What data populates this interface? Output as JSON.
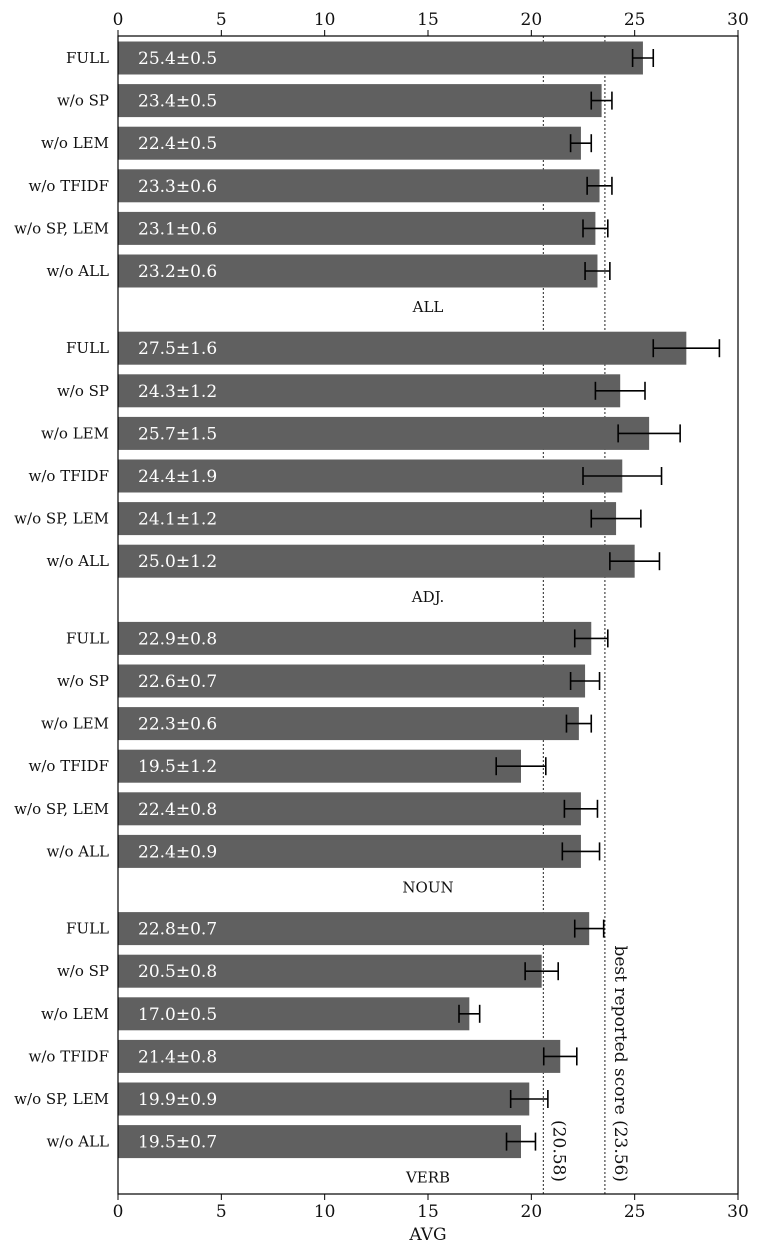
{
  "chart_data": {
    "type": "bar",
    "orientation": "horizontal",
    "title": "",
    "xlabel": "AVG",
    "ylabel": "",
    "xlim": [
      0,
      30
    ],
    "xticks": [
      0,
      5,
      10,
      15,
      20,
      25,
      30
    ],
    "grid": false,
    "bar_color": "#606060",
    "reference_lines": [
      {
        "x": 20.58,
        "label": "(20.58)"
      },
      {
        "x": 23.56,
        "label": "best reported score (23.56)"
      }
    ],
    "groups": [
      {
        "name": "ALL",
        "bars": [
          {
            "label": "FULL",
            "value": 25.4,
            "error": 0.5,
            "text": "25.4±0.5"
          },
          {
            "label": "w/o SP",
            "value": 23.4,
            "error": 0.5,
            "text": "23.4±0.5"
          },
          {
            "label": "w/o LEM",
            "value": 22.4,
            "error": 0.5,
            "text": "22.4±0.5"
          },
          {
            "label": "w/o TFIDF",
            "value": 23.3,
            "error": 0.6,
            "text": "23.3±0.6"
          },
          {
            "label": "w/o SP, LEM",
            "value": 23.1,
            "error": 0.6,
            "text": "23.1±0.6"
          },
          {
            "label": "w/o ALL",
            "value": 23.2,
            "error": 0.6,
            "text": "23.2±0.6"
          }
        ]
      },
      {
        "name": "ADJ.",
        "bars": [
          {
            "label": "FULL",
            "value": 27.5,
            "error": 1.6,
            "text": "27.5±1.6"
          },
          {
            "label": "w/o SP",
            "value": 24.3,
            "error": 1.2,
            "text": "24.3±1.2"
          },
          {
            "label": "w/o LEM",
            "value": 25.7,
            "error": 1.5,
            "text": "25.7±1.5"
          },
          {
            "label": "w/o TFIDF",
            "value": 24.4,
            "error": 1.9,
            "text": "24.4±1.9"
          },
          {
            "label": "w/o SP, LEM",
            "value": 24.1,
            "error": 1.2,
            "text": "24.1±1.2"
          },
          {
            "label": "w/o ALL",
            "value": 25.0,
            "error": 1.2,
            "text": "25.0±1.2"
          }
        ]
      },
      {
        "name": "NOUN",
        "bars": [
          {
            "label": "FULL",
            "value": 22.9,
            "error": 0.8,
            "text": "22.9±0.8"
          },
          {
            "label": "w/o SP",
            "value": 22.6,
            "error": 0.7,
            "text": "22.6±0.7"
          },
          {
            "label": "w/o LEM",
            "value": 22.3,
            "error": 0.6,
            "text": "22.3±0.6"
          },
          {
            "label": "w/o TFIDF",
            "value": 19.5,
            "error": 1.2,
            "text": "19.5±1.2"
          },
          {
            "label": "w/o SP, LEM",
            "value": 22.4,
            "error": 0.8,
            "text": "22.4±0.8"
          },
          {
            "label": "w/o ALL",
            "value": 22.4,
            "error": 0.9,
            "text": "22.4±0.9"
          }
        ]
      },
      {
        "name": "VERB",
        "bars": [
          {
            "label": "FULL",
            "value": 22.8,
            "error": 0.7,
            "text": "22.8±0.7"
          },
          {
            "label": "w/o SP",
            "value": 20.5,
            "error": 0.8,
            "text": "20.5±0.8"
          },
          {
            "label": "w/o LEM",
            "value": 17.0,
            "error": 0.5,
            "text": "17.0±0.5"
          },
          {
            "label": "w/o TFIDF",
            "value": 21.4,
            "error": 0.8,
            "text": "21.4±0.8"
          },
          {
            "label": "w/o SP, LEM",
            "value": 19.9,
            "error": 0.9,
            "text": "19.9±0.9"
          },
          {
            "label": "w/o ALL",
            "value": 19.5,
            "error": 0.7,
            "text": "19.5±0.7"
          }
        ]
      }
    ]
  }
}
